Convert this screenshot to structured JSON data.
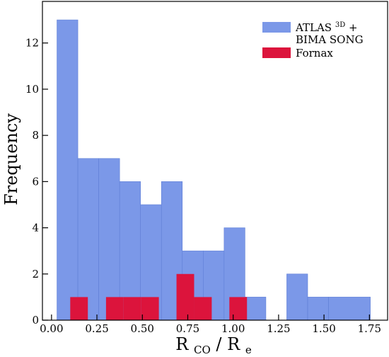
{
  "chart_data": {
    "type": "bar",
    "xlabel": "R",
    "xlabel_sub1": "CO",
    "xlabel_sep": " / R",
    "xlabel_sub2": "e",
    "ylabel": "Frequency",
    "xlim": [
      -0.05,
      1.85
    ],
    "ylim": [
      0,
      13.8
    ],
    "grid": false,
    "legend_position": "top-right",
    "x_ticks": [
      0.0,
      0.25,
      0.5,
      0.75,
      1.0,
      1.25,
      1.5,
      1.75
    ],
    "x_tick_labels": [
      "0.00",
      "0.25",
      "0.50",
      "0.75",
      "1.00",
      "1.25",
      "1.50",
      "1.75"
    ],
    "y_ticks": [
      0,
      2,
      4,
      6,
      8,
      10,
      12
    ],
    "y_tick_labels": [
      "0",
      "2",
      "4",
      "6",
      "8",
      "10",
      "12"
    ],
    "series": [
      {
        "name": "ATLAS3D + BIMA SONG",
        "color": "#7b98e8",
        "bins": [
          {
            "x0": 0.03,
            "x1": 0.145,
            "value": 13
          },
          {
            "x0": 0.145,
            "x1": 0.26,
            "value": 7
          },
          {
            "x0": 0.26,
            "x1": 0.375,
            "value": 7
          },
          {
            "x0": 0.375,
            "x1": 0.49,
            "value": 6
          },
          {
            "x0": 0.49,
            "x1": 0.605,
            "value": 5
          },
          {
            "x0": 0.605,
            "x1": 0.72,
            "value": 6
          },
          {
            "x0": 0.72,
            "x1": 0.835,
            "value": 3
          },
          {
            "x0": 0.835,
            "x1": 0.95,
            "value": 3
          },
          {
            "x0": 0.95,
            "x1": 1.065,
            "value": 4
          },
          {
            "x0": 1.065,
            "x1": 1.18,
            "value": 1
          },
          {
            "x0": 1.18,
            "x1": 1.295,
            "value": 0
          },
          {
            "x0": 1.295,
            "x1": 1.41,
            "value": 2
          },
          {
            "x0": 1.41,
            "x1": 1.525,
            "value": 1
          },
          {
            "x0": 1.525,
            "x1": 1.755,
            "value": 1
          }
        ]
      },
      {
        "name": "Fornax",
        "color": "#dc143c",
        "bins": [
          {
            "x0": 0.103,
            "x1": 0.2,
            "value": 1
          },
          {
            "x0": 0.3,
            "x1": 0.397,
            "value": 1
          },
          {
            "x0": 0.397,
            "x1": 0.494,
            "value": 1
          },
          {
            "x0": 0.494,
            "x1": 0.591,
            "value": 1
          },
          {
            "x0": 0.688,
            "x1": 0.785,
            "value": 2
          },
          {
            "x0": 0.785,
            "x1": 0.882,
            "value": 1
          },
          {
            "x0": 0.979,
            "x1": 1.076,
            "value": 1
          }
        ]
      }
    ],
    "legend": [
      {
        "label_main": "ATLAS",
        "label_sup": "3D",
        "label_tail": " +",
        "label_line2": "BIMA SONG",
        "color": "#7b98e8"
      },
      {
        "label_main": "Fornax",
        "color": "#dc143c"
      }
    ]
  }
}
